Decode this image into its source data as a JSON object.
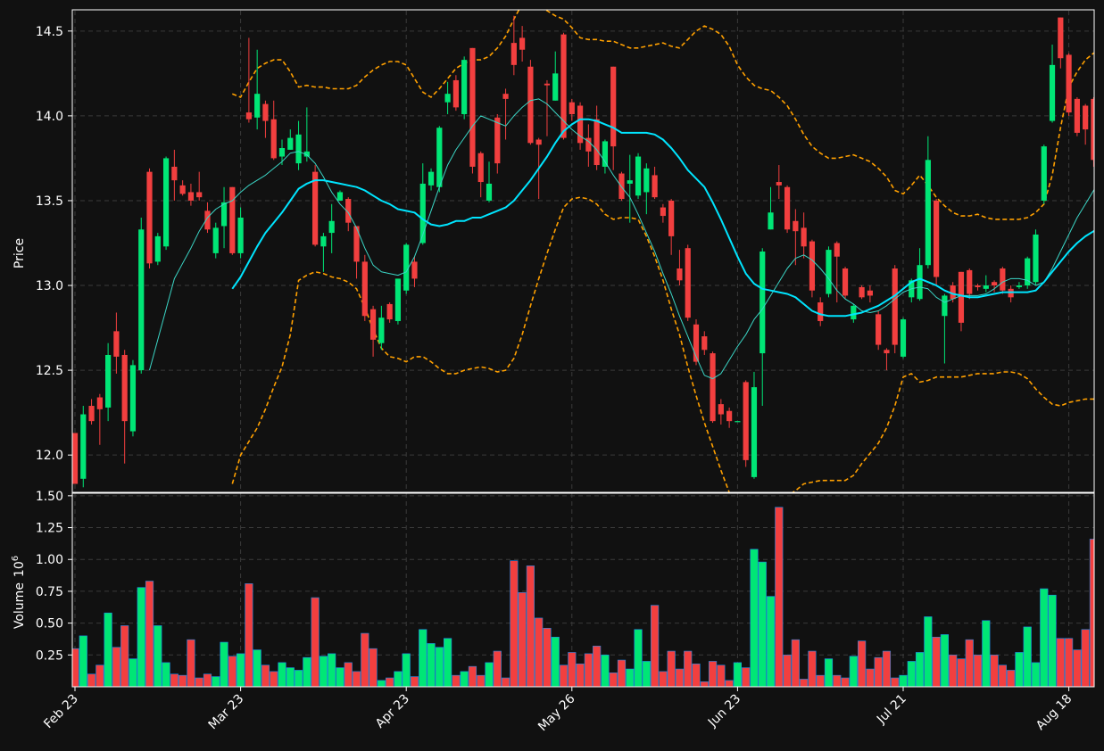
{
  "colors": {
    "background": "#111111",
    "up": "#00e676",
    "down": "#f23f3f",
    "volume_edge": "#1e88e5",
    "ma_fast": "#3bd6c6",
    "ma_slow": "#00e5ff",
    "bands": "#ffa000",
    "grid": "#3a3a3a",
    "spine": "#ffffff"
  },
  "chart_data": {
    "type": "candlestick",
    "price_panel": {
      "ylabel": "Price",
      "ylim": [
        11.78,
        14.62
      ],
      "yticks": [
        12.0,
        12.5,
        13.0,
        13.5,
        14.0,
        14.5
      ],
      "ytick_labels": [
        "12.0",
        "12.5",
        "13.0",
        "13.5",
        "14.0",
        "14.5"
      ],
      "grid": true
    },
    "volume_panel": {
      "ylabel": "Volume",
      "ylabel_exponent": "10",
      "ylabel_exponent_power": "6",
      "ylim": [
        0.0,
        1.52
      ],
      "yticks": [
        0.25,
        0.5,
        0.75,
        1.0,
        1.25,
        1.5
      ],
      "ytick_labels": [
        "0.25",
        "0.50",
        "0.75",
        "1.00",
        "1.25",
        "1.50"
      ],
      "unit_multiplier": 1000000,
      "grid": true
    },
    "x_axis": {
      "ticks": [
        {
          "index": 0,
          "label": "Feb 23"
        },
        {
          "index": 20,
          "label": "Mar 23"
        },
        {
          "index": 40,
          "label": "Apr 23"
        },
        {
          "index": 60,
          "label": "May 26"
        },
        {
          "index": 80,
          "label": "Jun 23"
        },
        {
          "index": 100,
          "label": "Jul 21"
        },
        {
          "index": 120,
          "label": "Aug 18"
        }
      ],
      "bar_count": 124
    },
    "candles": [
      [
        12.13,
        11.83,
        12.13,
        11.83,
        0.3
      ],
      [
        11.86,
        12.24,
        12.29,
        11.81,
        0.4
      ],
      [
        12.29,
        12.2,
        12.33,
        12.18,
        0.1
      ],
      [
        12.34,
        12.27,
        12.36,
        12.06,
        0.17
      ],
      [
        12.28,
        12.59,
        12.66,
        12.2,
        0.58
      ],
      [
        12.73,
        12.58,
        12.84,
        12.48,
        0.31
      ],
      [
        12.59,
        12.2,
        12.62,
        11.95,
        0.48
      ],
      [
        12.14,
        12.53,
        12.56,
        12.11,
        0.22
      ],
      [
        12.5,
        13.33,
        13.4,
        12.48,
        0.78
      ],
      [
        13.67,
        13.13,
        13.69,
        13.1,
        0.83
      ],
      [
        13.14,
        13.29,
        13.31,
        13.12,
        0.48
      ],
      [
        13.23,
        13.75,
        13.76,
        13.21,
        0.19
      ],
      [
        13.7,
        13.62,
        13.8,
        13.5,
        0.1
      ],
      [
        13.59,
        13.54,
        13.62,
        13.53,
        0.09
      ],
      [
        13.55,
        13.5,
        13.6,
        13.47,
        0.37
      ],
      [
        13.55,
        13.52,
        13.67,
        13.5,
        0.07
      ],
      [
        13.44,
        13.33,
        13.49,
        13.31,
        0.1
      ],
      [
        13.19,
        13.34,
        13.37,
        13.16,
        0.08
      ],
      [
        13.35,
        13.49,
        13.58,
        13.22,
        0.35
      ],
      [
        13.58,
        13.19,
        13.58,
        13.18,
        0.24
      ],
      [
        13.19,
        13.4,
        13.46,
        13.16,
        0.26
      ],
      [
        14.02,
        13.98,
        14.46,
        13.96,
        0.81
      ],
      [
        13.99,
        14.13,
        14.39,
        13.92,
        0.29
      ],
      [
        14.07,
        13.97,
        14.09,
        13.87,
        0.17
      ],
      [
        13.98,
        13.75,
        14.09,
        13.74,
        0.12
      ],
      [
        13.76,
        13.81,
        13.86,
        13.71,
        0.19
      ],
      [
        13.8,
        13.87,
        13.92,
        13.8,
        0.15
      ],
      [
        13.72,
        13.89,
        13.97,
        13.68,
        0.13
      ],
      [
        13.76,
        13.79,
        14.05,
        13.73,
        0.23
      ],
      [
        13.67,
        13.24,
        13.71,
        13.23,
        0.7
      ],
      [
        13.23,
        13.29,
        13.31,
        13.08,
        0.24
      ],
      [
        13.31,
        13.38,
        13.48,
        13.19,
        0.26
      ],
      [
        13.5,
        13.55,
        13.56,
        13.5,
        0.15
      ],
      [
        13.51,
        13.37,
        13.52,
        13.32,
        0.19
      ],
      [
        13.35,
        13.14,
        13.35,
        13.04,
        0.12
      ],
      [
        13.14,
        12.82,
        13.18,
        12.79,
        0.42
      ],
      [
        12.86,
        12.68,
        12.88,
        12.58,
        0.3
      ],
      [
        12.66,
        12.81,
        12.88,
        12.62,
        0.05
      ],
      [
        12.89,
        12.8,
        12.9,
        12.78,
        0.07
      ],
      [
        12.79,
        13.04,
        13.04,
        12.77,
        0.12
      ],
      [
        12.97,
        13.24,
        13.25,
        12.95,
        0.26
      ],
      [
        13.14,
        13.04,
        13.17,
        12.99,
        0.08
      ],
      [
        13.25,
        13.6,
        13.72,
        13.24,
        0.45
      ],
      [
        13.59,
        13.67,
        13.69,
        13.56,
        0.34
      ],
      [
        13.58,
        13.93,
        13.94,
        13.55,
        0.31
      ],
      [
        14.08,
        14.13,
        14.2,
        14.01,
        0.38
      ],
      [
        14.21,
        14.05,
        14.24,
        14.03,
        0.09
      ],
      [
        14.01,
        14.33,
        14.35,
        13.98,
        0.12
      ],
      [
        14.4,
        13.7,
        14.4,
        13.66,
        0.16
      ],
      [
        13.78,
        13.61,
        13.79,
        13.52,
        0.09
      ],
      [
        13.5,
        13.6,
        13.73,
        13.49,
        0.19
      ],
      [
        13.99,
        13.72,
        14.01,
        13.66,
        0.28
      ],
      [
        14.13,
        14.1,
        14.16,
        13.86,
        0.07
      ],
      [
        14.43,
        14.3,
        14.59,
        14.24,
        0.99
      ],
      [
        14.46,
        14.39,
        14.53,
        14.32,
        0.74
      ],
      [
        14.29,
        13.84,
        14.33,
        13.83,
        0.95
      ],
      [
        13.86,
        13.83,
        13.87,
        13.51,
        0.54
      ],
      [
        14.19,
        14.18,
        14.21,
        13.88,
        0.46
      ],
      [
        14.09,
        14.25,
        14.38,
        14.09,
        0.39
      ],
      [
        14.48,
        13.87,
        14.49,
        13.86,
        0.17
      ],
      [
        14.08,
        14.01,
        14.1,
        13.97,
        0.27
      ],
      [
        14.06,
        13.84,
        14.08,
        13.8,
        0.18
      ],
      [
        13.87,
        13.79,
        13.95,
        13.7,
        0.26
      ],
      [
        13.98,
        13.71,
        14.06,
        13.68,
        0.32
      ],
      [
        13.7,
        13.85,
        13.86,
        13.66,
        0.25
      ],
      [
        14.29,
        13.82,
        14.29,
        13.68,
        0.11
      ],
      [
        13.66,
        13.51,
        13.67,
        13.5,
        0.21
      ],
      [
        13.6,
        13.62,
        13.77,
        13.37,
        0.14
      ],
      [
        13.53,
        13.76,
        13.78,
        13.51,
        0.45
      ],
      [
        13.55,
        13.69,
        13.72,
        13.42,
        0.2
      ],
      [
        13.65,
        13.52,
        13.7,
        13.51,
        0.64
      ],
      [
        13.46,
        13.41,
        13.48,
        13.37,
        0.12
      ],
      [
        13.5,
        13.29,
        13.51,
        13.18,
        0.28
      ],
      [
        13.1,
        13.03,
        13.21,
        13.0,
        0.14
      ],
      [
        13.22,
        12.81,
        13.24,
        12.79,
        0.28
      ],
      [
        12.77,
        12.55,
        12.8,
        12.53,
        0.18
      ],
      [
        12.7,
        12.62,
        12.73,
        12.59,
        0.04
      ],
      [
        12.6,
        12.2,
        12.61,
        12.19,
        0.2
      ],
      [
        12.3,
        12.24,
        12.33,
        12.18,
        0.17
      ],
      [
        12.26,
        12.2,
        12.28,
        12.16,
        0.05
      ],
      [
        12.2,
        12.2,
        12.2,
        12.2,
        0.19
      ],
      [
        12.43,
        11.97,
        12.44,
        11.93,
        0.15
      ],
      [
        11.87,
        12.4,
        12.49,
        11.86,
        1.08
      ],
      [
        12.6,
        13.2,
        13.22,
        12.29,
        0.98
      ],
      [
        13.33,
        13.43,
        13.58,
        13.33,
        0.71
      ],
      [
        13.61,
        13.59,
        13.71,
        13.51,
        1.41
      ],
      [
        13.58,
        13.33,
        13.59,
        13.31,
        0.25
      ],
      [
        13.38,
        13.32,
        13.45,
        13.12,
        0.37
      ],
      [
        13.34,
        13.23,
        13.43,
        13.16,
        0.06
      ],
      [
        13.26,
        12.97,
        13.27,
        12.93,
        0.28
      ],
      [
        12.9,
        12.79,
        12.93,
        12.76,
        0.09
      ],
      [
        12.95,
        13.21,
        13.23,
        12.93,
        0.22
      ],
      [
        13.25,
        13.17,
        13.26,
        12.9,
        0.09
      ],
      [
        13.1,
        12.94,
        13.11,
        12.92,
        0.07
      ],
      [
        12.8,
        12.88,
        12.89,
        12.78,
        0.24
      ],
      [
        12.99,
        12.93,
        13.0,
        12.92,
        0.36
      ],
      [
        12.97,
        12.94,
        13.0,
        12.9,
        0.14
      ],
      [
        12.83,
        12.65,
        12.85,
        12.62,
        0.23
      ],
      [
        12.62,
        12.6,
        12.63,
        12.5,
        0.28
      ],
      [
        13.1,
        12.65,
        13.12,
        12.6,
        0.07
      ],
      [
        12.58,
        12.8,
        12.81,
        12.57,
        0.09
      ],
      [
        12.93,
        13.03,
        13.04,
        12.9,
        0.2
      ],
      [
        12.92,
        13.12,
        13.22,
        12.91,
        0.27
      ],
      [
        13.12,
        13.74,
        13.88,
        13.1,
        0.55
      ],
      [
        13.5,
        13.05,
        13.51,
        13.0,
        0.39
      ],
      [
        12.82,
        12.94,
        12.95,
        12.54,
        0.41
      ],
      [
        13.0,
        12.92,
        13.02,
        12.9,
        0.25
      ],
      [
        13.08,
        12.78,
        13.08,
        12.73,
        0.22
      ],
      [
        13.09,
        12.95,
        13.1,
        12.92,
        0.37
      ],
      [
        13.0,
        12.99,
        13.01,
        12.97,
        0.25
      ],
      [
        12.98,
        13.0,
        13.06,
        12.96,
        0.52
      ],
      [
        13.02,
        13.0,
        13.03,
        12.96,
        0.25
      ],
      [
        13.1,
        12.97,
        13.11,
        12.95,
        0.17
      ],
      [
        12.98,
        12.93,
        13.0,
        12.9,
        0.13
      ],
      [
        12.99,
        13.0,
        13.02,
        12.98,
        0.27
      ],
      [
        13.0,
        13.16,
        13.17,
        12.98,
        0.47
      ],
      [
        13.02,
        13.3,
        13.33,
        13.0,
        0.19
      ],
      [
        13.5,
        13.82,
        13.83,
        13.48,
        0.77
      ],
      [
        13.97,
        14.3,
        14.42,
        13.96,
        0.72
      ],
      [
        14.58,
        14.34,
        14.58,
        14.28,
        0.38
      ],
      [
        14.36,
        14.02,
        14.37,
        14.0,
        0.38
      ],
      [
        14.1,
        13.9,
        14.11,
        13.88,
        0.29
      ],
      [
        14.06,
        13.92,
        14.07,
        13.83,
        0.45
      ],
      [
        14.1,
        13.74,
        14.11,
        13.7,
        1.16
      ]
    ],
    "ma_fast": {
      "start_index": 9,
      "values": [
        12.5,
        12.68,
        12.86,
        13.04,
        13.13,
        13.22,
        13.32,
        13.4,
        13.45,
        13.48,
        13.5,
        13.55,
        13.59,
        13.62,
        13.65,
        13.69,
        13.73,
        13.78,
        13.79,
        13.77,
        13.72,
        13.64,
        13.55,
        13.48,
        13.43,
        13.34,
        13.22,
        13.12,
        13.08,
        13.07,
        13.06,
        13.08,
        13.17,
        13.3,
        13.44,
        13.58,
        13.71,
        13.8,
        13.87,
        13.94,
        14.0,
        13.98,
        13.96,
        13.94,
        14.0,
        14.05,
        14.09,
        14.1,
        14.07,
        14.02,
        13.97,
        13.92,
        13.88,
        13.85,
        13.8,
        13.73,
        13.65,
        13.58,
        13.52,
        13.42,
        13.31,
        13.2,
        13.07,
        12.95,
        12.82,
        12.7,
        12.58,
        12.47,
        12.45,
        12.48,
        12.56,
        12.64,
        12.71,
        12.8,
        12.86,
        12.94,
        13.02,
        13.1,
        13.16,
        13.18,
        13.15,
        13.1,
        13.04,
        12.97,
        12.92,
        12.89,
        12.85,
        12.84,
        12.85,
        12.88,
        12.92,
        12.96,
        12.98,
        12.99,
        12.98,
        12.93,
        12.9,
        12.92,
        12.94,
        12.94,
        12.94,
        12.95,
        12.98,
        13.02,
        13.04,
        13.04,
        13.03,
        13.0,
        13.02,
        13.1,
        13.2,
        13.3,
        13.4,
        13.48,
        13.56,
        13.64,
        13.71
      ]
    },
    "ma_slow": {
      "start_index": 19,
      "values": [
        12.98,
        13.05,
        13.14,
        13.23,
        13.31,
        13.37,
        13.43,
        13.5,
        13.57,
        13.6,
        13.62,
        13.62,
        13.61,
        13.6,
        13.59,
        13.58,
        13.56,
        13.53,
        13.5,
        13.48,
        13.45,
        13.44,
        13.43,
        13.39,
        13.36,
        13.35,
        13.36,
        13.38,
        13.38,
        13.4,
        13.4,
        13.42,
        13.44,
        13.46,
        13.5,
        13.56,
        13.62,
        13.69,
        13.76,
        13.84,
        13.91,
        13.95,
        13.98,
        13.98,
        13.97,
        13.95,
        13.93,
        13.9,
        13.9,
        13.9,
        13.9,
        13.89,
        13.86,
        13.81,
        13.75,
        13.68,
        13.63,
        13.58,
        13.49,
        13.39,
        13.28,
        13.17,
        13.07,
        13.01,
        12.98,
        12.97,
        12.96,
        12.95,
        12.93,
        12.89,
        12.85,
        12.83,
        12.82,
        12.82,
        12.82,
        12.83,
        12.84,
        12.86,
        12.88,
        12.91,
        12.94,
        12.98,
        13.02,
        13.04,
        13.02,
        13.0,
        12.97,
        12.95,
        12.94,
        12.93,
        12.93,
        12.94,
        12.95,
        12.96,
        12.96,
        12.96,
        12.96,
        12.97,
        13.02,
        13.08,
        13.14,
        13.2,
        13.25,
        13.29,
        13.32,
        13.35,
        13.35
      ]
    },
    "band_upper": {
      "start_index": 19,
      "values": [
        14.13,
        14.11,
        14.2,
        14.28,
        14.31,
        14.33,
        14.33,
        14.26,
        14.17,
        14.18,
        14.17,
        14.17,
        14.16,
        14.16,
        14.16,
        14.18,
        14.23,
        14.27,
        14.3,
        14.32,
        14.32,
        14.3,
        14.22,
        14.14,
        14.11,
        14.16,
        14.22,
        14.28,
        14.31,
        14.33,
        14.33,
        14.35,
        14.4,
        14.47,
        14.57,
        14.66,
        14.7,
        14.65,
        14.62,
        14.59,
        14.57,
        14.52,
        14.46,
        14.45,
        14.45,
        14.44,
        14.44,
        14.42,
        14.4,
        14.4,
        14.41,
        14.42,
        14.43,
        14.41,
        14.4,
        14.45,
        14.5,
        14.53,
        14.51,
        14.48,
        14.41,
        14.3,
        14.23,
        14.18,
        14.16,
        14.15,
        14.11,
        14.06,
        13.98,
        13.89,
        13.82,
        13.78,
        13.75,
        13.75,
        13.76,
        13.77,
        13.75,
        13.73,
        13.69,
        13.64,
        13.56,
        13.54,
        13.59,
        13.65,
        13.59,
        13.52,
        13.47,
        13.43,
        13.41,
        13.41,
        13.42,
        13.4,
        13.39,
        13.39,
        13.39,
        13.39,
        13.4,
        13.43,
        13.48,
        13.65,
        13.93,
        14.17,
        14.26,
        14.33,
        14.37,
        14.36,
        14.36
      ]
    },
    "band_lower": {
      "start_index": 19,
      "values": [
        11.83,
        12.0,
        12.08,
        12.16,
        12.27,
        12.4,
        12.52,
        12.71,
        13.03,
        13.06,
        13.08,
        13.07,
        13.05,
        13.04,
        13.02,
        12.98,
        12.87,
        12.74,
        12.63,
        12.58,
        12.57,
        12.55,
        12.58,
        12.58,
        12.55,
        12.51,
        12.48,
        12.48,
        12.5,
        12.51,
        12.52,
        12.51,
        12.49,
        12.5,
        12.57,
        12.71,
        12.88,
        13.04,
        13.19,
        13.33,
        13.46,
        13.51,
        13.52,
        13.51,
        13.48,
        13.42,
        13.39,
        13.4,
        13.4,
        13.39,
        13.29,
        13.17,
        13.03,
        12.86,
        12.71,
        12.52,
        12.35,
        12.19,
        12.05,
        11.91,
        11.78,
        11.72,
        11.7,
        11.72,
        11.73,
        11.73,
        11.74,
        11.76,
        11.79,
        11.83,
        11.84,
        11.85,
        11.85,
        11.85,
        11.85,
        11.88,
        11.95,
        12.01,
        12.07,
        12.16,
        12.29,
        12.46,
        12.48,
        12.43,
        12.44,
        12.46,
        12.46,
        12.46,
        12.46,
        12.47,
        12.48,
        12.48,
        12.48,
        12.49,
        12.49,
        12.48,
        12.45,
        12.39,
        12.34,
        12.3,
        12.29,
        12.31,
        12.32,
        12.33,
        12.33,
        12.33,
        12.33
      ]
    }
  }
}
